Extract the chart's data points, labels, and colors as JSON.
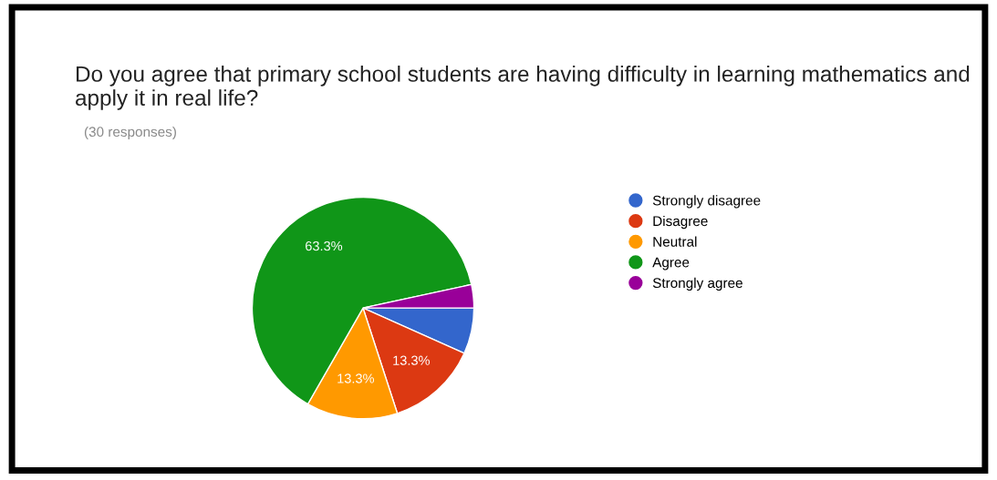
{
  "chart_data": {
    "type": "pie",
    "title": "Do you agree that primary school students are having difficulty in learning mathematics and apply it in real life?",
    "subtitle": "(30 responses)",
    "categories": [
      "Strongly disagree",
      "Disagree",
      "Neutral",
      "Agree",
      "Strongly agree"
    ],
    "values": [
      6.7,
      13.3,
      13.3,
      63.3,
      3.4
    ],
    "colors": [
      "#3366cc",
      "#dc3912",
      "#ff9900",
      "#109618",
      "#990099"
    ],
    "value_labels": [
      null,
      "13.3%",
      "13.3%",
      "63.3%",
      null
    ],
    "legend": "right"
  }
}
